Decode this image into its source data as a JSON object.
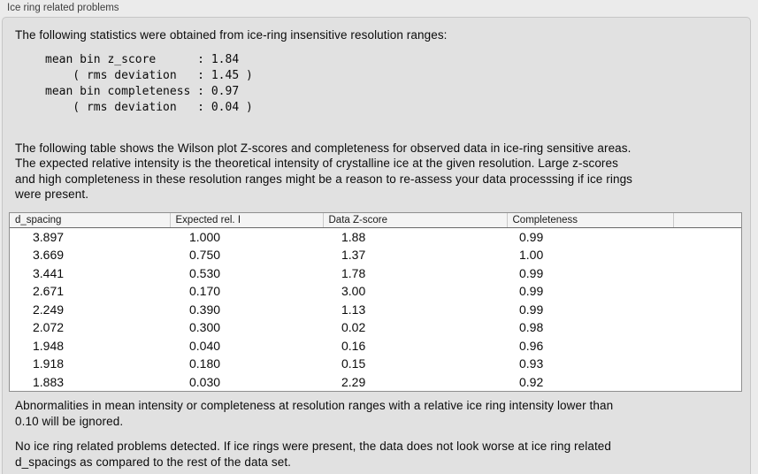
{
  "section": {
    "title": "Ice ring related problems"
  },
  "intro_text": "The following statistics were obtained from ice-ring insensitive resolution ranges:",
  "statistics": {
    "mean_bin_z_score": "1.84",
    "z_score_rms_deviation": "1.45",
    "mean_bin_completeness": "0.97",
    "completeness_rms_deviation": "0.04"
  },
  "stats_block": "mean bin z_score      : 1.84\n    ( rms deviation   : 1.45 )\nmean bin completeness : 0.97\n    ( rms deviation   : 0.04 )",
  "table_description": "The following table shows the Wilson plot Z-scores and completeness for observed data in ice-ring sensitive areas.\nThe expected relative intensity is the theoretical intensity of crystalline ice at the given resolution. Large z-scores\nand high completeness in these resolution ranges might be a reason to re-assess your data processsing if ice rings\nwere present.",
  "table": {
    "headers": [
      "d_spacing",
      "Expected rel. I",
      "Data Z-score",
      "Completeness",
      ""
    ],
    "rows": [
      [
        "3.897",
        "1.000",
        "1.88",
        "0.99"
      ],
      [
        "3.669",
        "0.750",
        "1.37",
        "1.00"
      ],
      [
        "3.441",
        "0.530",
        "1.78",
        "0.99"
      ],
      [
        "2.671",
        "0.170",
        "3.00",
        "0.99"
      ],
      [
        "2.249",
        "0.390",
        "1.13",
        "0.99"
      ],
      [
        "2.072",
        "0.300",
        "0.02",
        "0.98"
      ],
      [
        "1.948",
        "0.040",
        "0.16",
        "0.96"
      ],
      [
        "1.918",
        "0.180",
        "0.15",
        "0.93"
      ],
      [
        "1.883",
        "0.030",
        "2.29",
        "0.92"
      ]
    ]
  },
  "abnormalities_note": "Abnormalities in mean intensity or completeness at resolution ranges with a relative ice ring intensity lower than\n0.10 will be ignored.",
  "conclusion_text": "No ice ring related problems detected. If ice rings were present, the data does not look worse at ice ring related\nd_spacings as compared to the rest of the data set.",
  "colors": {
    "outer_background": "#ebebeb",
    "panel_background": "#e1e1e1",
    "panel_border": "#c6c6c6",
    "table_background": "#ffffff",
    "table_border": "#8e8e8e",
    "header_background": "#f4f4f4",
    "header_underline": "#696969",
    "header_divider": "#c9c9c9",
    "text": "#0b0b0b"
  }
}
